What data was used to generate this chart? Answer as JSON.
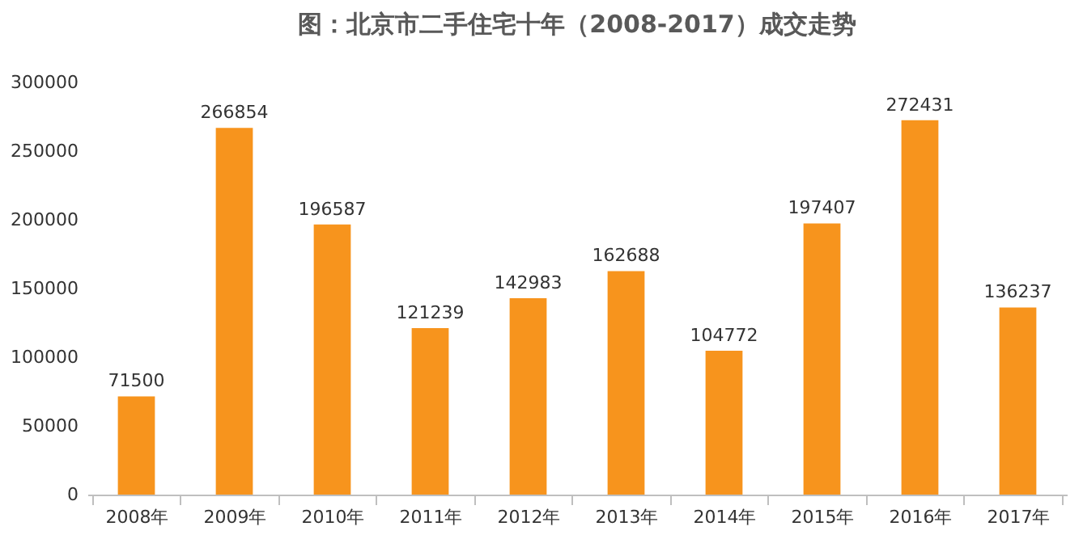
{
  "chart_data": {
    "type": "bar",
    "title": "图：北京市二手住宅十年（2008-2017）成交走势",
    "categories": [
      "2008年",
      "2009年",
      "2010年",
      "2011年",
      "2012年",
      "2013年",
      "2014年",
      "2015年",
      "2016年",
      "2017年"
    ],
    "values": [
      71500,
      266854,
      196587,
      121239,
      142983,
      162688,
      104772,
      197407,
      272431,
      136237
    ],
    "color": "#f7941d",
    "ylim": [
      0,
      300000
    ],
    "yticks": [
      0,
      50000,
      100000,
      150000,
      200000,
      250000,
      300000
    ],
    "grid": false,
    "data_labels": true
  }
}
